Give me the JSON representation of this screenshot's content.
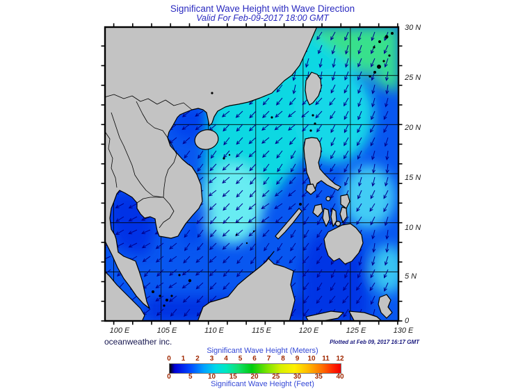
{
  "header": {
    "title": "Significant Wave Height with Wave Direction",
    "subtitle": "Valid For Feb-09-2017 18:00 GMT"
  },
  "footer": {
    "credit": "oceanweather inc.",
    "plotted": "Plotted at Feb 09, 2017 16:17 GMT"
  },
  "axes": {
    "lat_labels": [
      "30 N",
      "25 N",
      "20 N",
      "15 N",
      "10 N",
      "5 N",
      "0"
    ],
    "lon_labels": [
      "100 E",
      "105 E",
      "110 E",
      "115 E",
      "120 E",
      "125 E",
      "130 E"
    ]
  },
  "legend": {
    "meters_label": "Significant Wave Height (Meters)",
    "feet_label": "Significant Wave Height (Feet)",
    "meters_ticks": [
      "0",
      "1",
      "2",
      "3",
      "4",
      "5",
      "6",
      "7",
      "8",
      "9",
      "10",
      "11",
      "12"
    ],
    "feet_ticks": [
      "0",
      "5",
      "10",
      "15",
      "20",
      "25",
      "30",
      "35",
      "40"
    ],
    "gradient_stops": [
      "#000000 0%",
      "#0000d8 3%",
      "#0048ff 12%",
      "#00a2ff 20%",
      "#00d8e8 27%",
      "#00e8c0 33%",
      "#12e070 40%",
      "#00cc10 48%",
      "#7ce400 57%",
      "#d8f000 65%",
      "#fff000 73%",
      "#ffb800 81%",
      "#ff7000 89%",
      "#ff2000 96%",
      "#f00000 100%"
    ]
  },
  "colors": {
    "title_text": "#2a2ac0",
    "tick_numbers": "#a02800",
    "legend_labels": "#3347d6",
    "land": "#c3c3c3",
    "coastline": "#000000",
    "arrows": "#00008c",
    "ocean_base": "#0857f0"
  },
  "chart_data": {
    "type": "heatmap",
    "title": "Significant Wave Height with Wave Direction",
    "valid_time": "Feb-09-2017 18:00 GMT",
    "extent": {
      "lon": [
        99,
        130
      ],
      "lat": [
        0,
        30
      ]
    },
    "scale_meters": [
      0,
      12
    ],
    "scale_feet": [
      0,
      40
    ],
    "region_values_m": {
      "northeast_of_taiwan": 4,
      "luzon_strait_central_scs": 3,
      "central_scs_peak_patch": 3.5,
      "gulf_of_tonkin": 2,
      "gulf_of_thailand": 1,
      "sulu_celebes_seas": 1.5,
      "pacific_east_of_philippines": 2.5
    },
    "wave_direction": "predominantly toward southwest; toward south in the western Pacific sector"
  }
}
